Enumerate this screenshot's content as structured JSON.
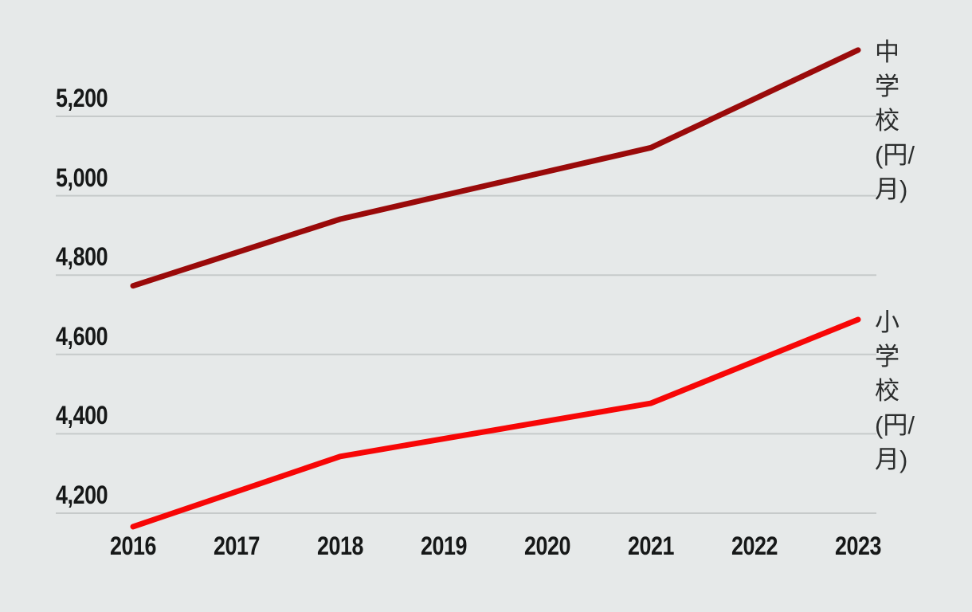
{
  "chart_data": {
    "type": "line",
    "title": "",
    "xlabel": "",
    "ylabel": "",
    "x_ticks": [
      "2016",
      "2017",
      "2018",
      "2019",
      "2020",
      "2021",
      "2022",
      "2023"
    ],
    "y_ticks": [
      "4,200",
      "4,400",
      "4,600",
      "4,800",
      "5,000",
      "5,200"
    ],
    "y_tick_values": [
      4200,
      4400,
      4600,
      4800,
      5000,
      5200
    ],
    "xlim": [
      2016,
      2023
    ],
    "ylim": [
      4150,
      5400
    ],
    "grid": "horizontal-only",
    "legend_position": "right-of-line-end",
    "series": [
      {
        "name": "中学校(円/月)",
        "label_wrapped": "中\n学\n校\n(円/\n月)",
        "color": "#9a0a0a",
        "points": [
          {
            "x": 2016,
            "y": 4773
          },
          {
            "x": 2018,
            "y": 4941
          },
          {
            "x": 2021,
            "y": 5121
          },
          {
            "x": 2023,
            "y": 5367
          }
        ]
      },
      {
        "name": "小学校(円/月)",
        "label_wrapped": "小\n学\n校\n(円/\n月)",
        "color": "#f70606",
        "points": [
          {
            "x": 2016,
            "y": 4166
          },
          {
            "x": 2018,
            "y": 4343
          },
          {
            "x": 2021,
            "y": 4477
          },
          {
            "x": 2023,
            "y": 4688
          }
        ]
      }
    ],
    "colors": {
      "background": "#e6e9e9",
      "gridline": "#c6caca",
      "tick_text": "#161818",
      "legend_text": "#2b2d2d"
    }
  }
}
